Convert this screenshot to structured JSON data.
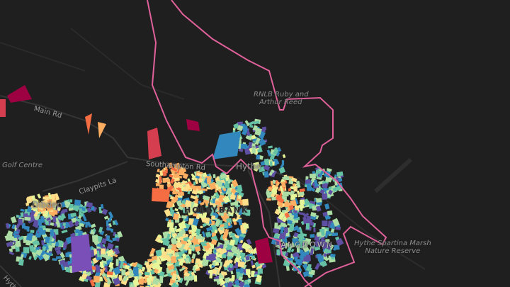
{
  "map": {
    "labels": {
      "main_rd": "Main Rd",
      "golf_centre": "Golf Centre",
      "claypits_la": "Claypits La",
      "southampton_rd": "Southampton Rd",
      "dibden": "Dibden",
      "hythe": "Hythe",
      "hollybank": "HOLLYBANK",
      "langdown": "LANGDOWN",
      "rnlb_line1": "RNLB Ruby and",
      "rnlb_line2": "Arthur Reed",
      "marsh_line1": "Hythe Spartina Marsh",
      "marsh_line2": "Nature Reserve",
      "hythe_road": "Hythe"
    },
    "colors": {
      "background": "#1f1f1f",
      "roads": "#333333",
      "boundary": "#e0609a",
      "palette": [
        "#9e0142",
        "#d53e4f",
        "#f46d43",
        "#fdae61",
        "#fee08b",
        "#e6f598",
        "#abdda4",
        "#66c2a5",
        "#3288bd",
        "#5e4fa2",
        "#7b4fb8"
      ]
    }
  }
}
